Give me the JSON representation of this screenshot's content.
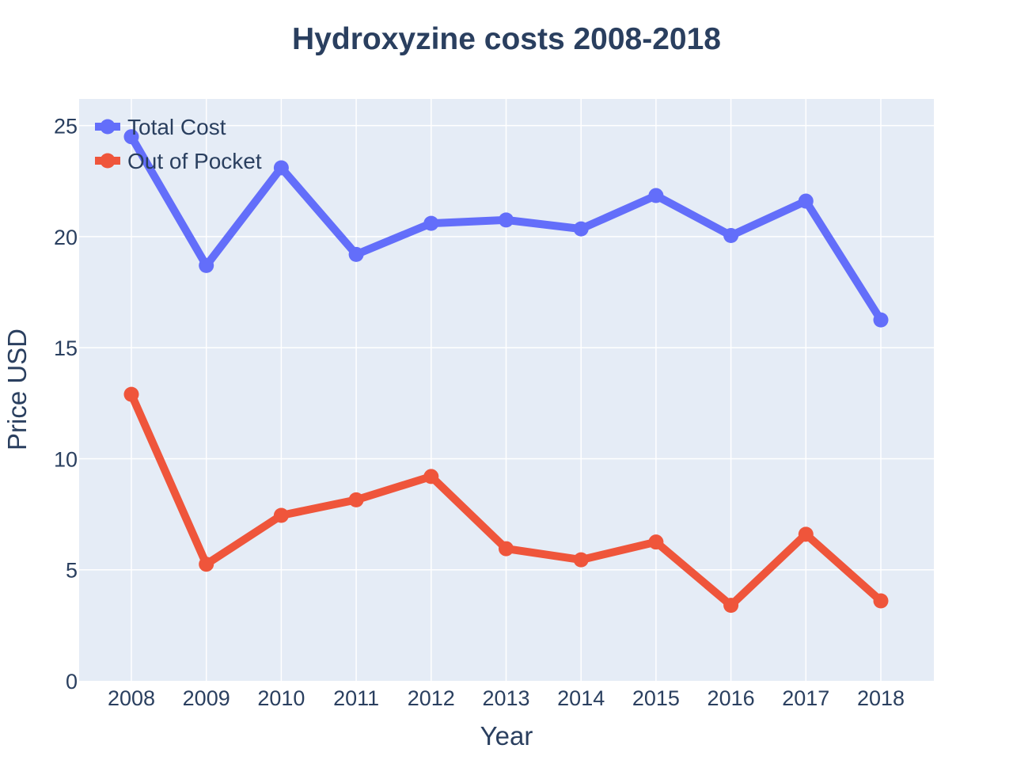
{
  "chart_data": {
    "type": "line",
    "title": "Hydroxyzine costs 2008-2018",
    "xlabel": "Year",
    "ylabel": "Price USD",
    "x": [
      "2008",
      "2009",
      "2010",
      "2011",
      "2012",
      "2013",
      "2014",
      "2015",
      "2016",
      "2017",
      "2018"
    ],
    "ylim": [
      0,
      26.2
    ],
    "yticks": [
      0,
      5,
      10,
      15,
      20,
      25
    ],
    "grid": true,
    "legend_position": "top-left",
    "series": [
      {
        "name": "Total Cost",
        "color": "#636efa",
        "values": [
          24.5,
          18.7,
          23.1,
          19.2,
          20.6,
          20.75,
          20.35,
          21.85,
          20.05,
          21.6,
          16.25
        ]
      },
      {
        "name": "Out of Pocket",
        "color": "#ef553b",
        "values": [
          12.9,
          5.25,
          7.45,
          8.15,
          9.2,
          5.95,
          5.45,
          6.25,
          3.4,
          6.6,
          3.6
        ]
      }
    ],
    "plot_background": "#e5ecf6",
    "grid_color": "#ffffff",
    "text_color": "#2a3f5f"
  }
}
